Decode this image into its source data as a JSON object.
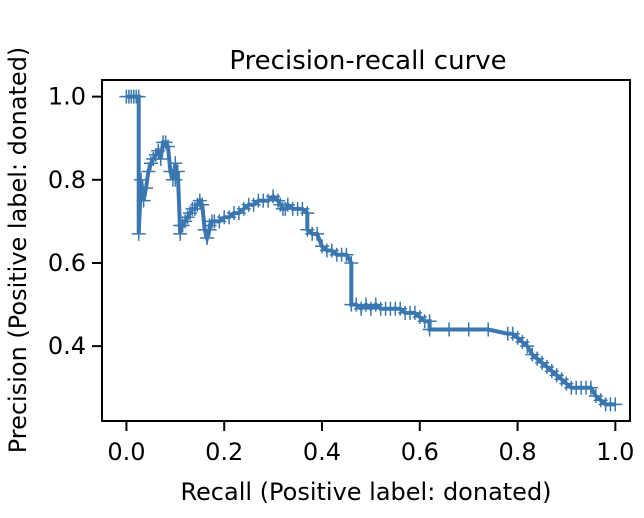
{
  "chart_data": {
    "type": "line",
    "title": "Precision-recall curve",
    "xlabel": "Recall (Positive label: donated)",
    "ylabel": "Precision (Positive label: donated)",
    "xlim": [
      -0.05,
      1.03
    ],
    "ylim": [
      0.22,
      1.04
    ],
    "xticks": [
      0.0,
      0.2,
      0.4,
      0.6,
      0.8,
      1.0
    ],
    "xtick_labels": [
      "0.0",
      "0.2",
      "0.4",
      "0.6",
      "0.8",
      "1.0"
    ],
    "yticks": [
      0.4,
      0.6,
      0.8,
      1.0
    ],
    "ytick_labels": [
      "0.4",
      "0.6",
      "0.8",
      "1.0"
    ],
    "grid": false,
    "line_color": "#3a76af",
    "marker": "+",
    "series": [
      {
        "name": "",
        "x": [
          0.0,
          0.005,
          0.01,
          0.015,
          0.02,
          0.025,
          0.025,
          0.03,
          0.035,
          0.04,
          0.045,
          0.05,
          0.055,
          0.06,
          0.065,
          0.07,
          0.075,
          0.08,
          0.085,
          0.09,
          0.095,
          0.1,
          0.1,
          0.105,
          0.11,
          0.11,
          0.115,
          0.12,
          0.125,
          0.13,
          0.135,
          0.14,
          0.145,
          0.15,
          0.155,
          0.16,
          0.165,
          0.17,
          0.17,
          0.175,
          0.18,
          0.19,
          0.2,
          0.21,
          0.22,
          0.23,
          0.24,
          0.25,
          0.26,
          0.27,
          0.28,
          0.29,
          0.3,
          0.31,
          0.315,
          0.32,
          0.325,
          0.33,
          0.34,
          0.35,
          0.36,
          0.37,
          0.37,
          0.38,
          0.39,
          0.4,
          0.41,
          0.42,
          0.43,
          0.44,
          0.45,
          0.46,
          0.46,
          0.47,
          0.48,
          0.49,
          0.5,
          0.51,
          0.52,
          0.53,
          0.54,
          0.55,
          0.56,
          0.57,
          0.58,
          0.59,
          0.6,
          0.61,
          0.62,
          0.62,
          0.66,
          0.7,
          0.74,
          0.78,
          0.79,
          0.8,
          0.81,
          0.82,
          0.83,
          0.84,
          0.85,
          0.86,
          0.87,
          0.88,
          0.89,
          0.9,
          0.91,
          0.92,
          0.93,
          0.94,
          0.95,
          0.96,
          0.97,
          0.98,
          0.99,
          1.0
        ],
        "y": [
          1.0,
          1.0,
          1.0,
          1.0,
          1.0,
          1.0,
          0.67,
          0.8,
          0.75,
          0.78,
          0.82,
          0.84,
          0.85,
          0.86,
          0.87,
          0.85,
          0.89,
          0.89,
          0.88,
          0.82,
          0.8,
          0.84,
          0.8,
          0.82,
          0.67,
          0.69,
          0.69,
          0.7,
          0.71,
          0.72,
          0.73,
          0.73,
          0.74,
          0.75,
          0.74,
          0.68,
          0.66,
          0.68,
          0.69,
          0.7,
          0.7,
          0.7,
          0.71,
          0.71,
          0.72,
          0.72,
          0.73,
          0.74,
          0.74,
          0.75,
          0.75,
          0.75,
          0.76,
          0.75,
          0.74,
          0.73,
          0.73,
          0.74,
          0.73,
          0.73,
          0.73,
          0.72,
          0.68,
          0.67,
          0.67,
          0.64,
          0.63,
          0.63,
          0.62,
          0.62,
          0.62,
          0.6,
          0.5,
          0.5,
          0.49,
          0.5,
          0.49,
          0.5,
          0.49,
          0.49,
          0.49,
          0.49,
          0.49,
          0.48,
          0.48,
          0.48,
          0.47,
          0.46,
          0.46,
          0.44,
          0.44,
          0.44,
          0.44,
          0.43,
          0.43,
          0.42,
          0.41,
          0.4,
          0.38,
          0.37,
          0.36,
          0.35,
          0.34,
          0.33,
          0.32,
          0.31,
          0.3,
          0.3,
          0.3,
          0.3,
          0.3,
          0.28,
          0.27,
          0.26,
          0.26,
          0.26
        ]
      }
    ]
  }
}
